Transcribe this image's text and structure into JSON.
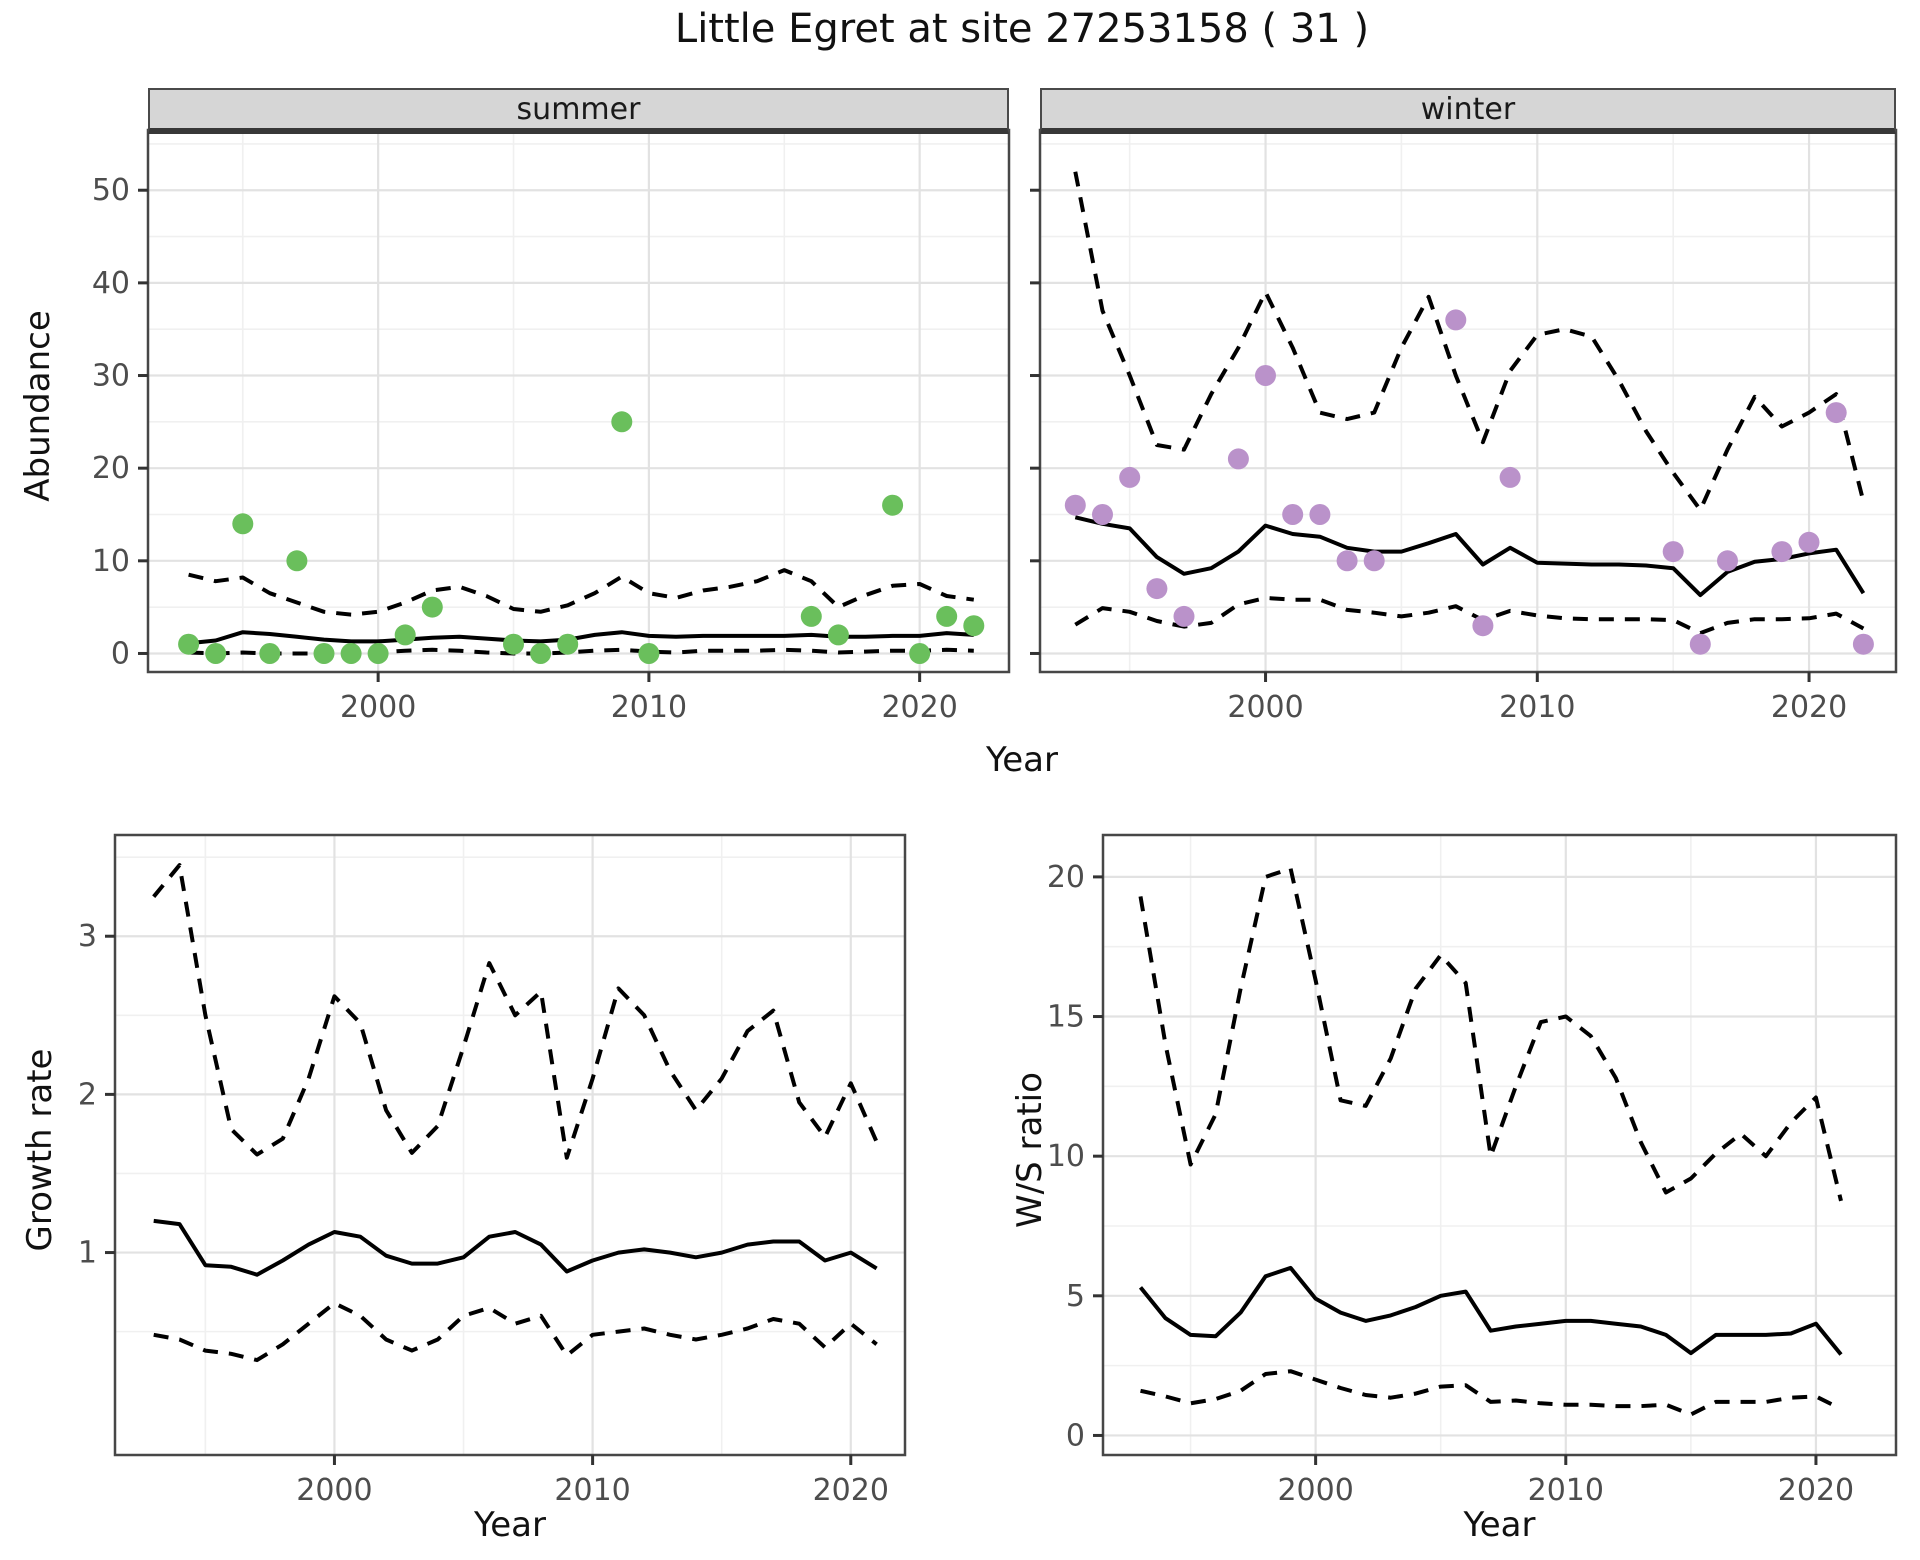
{
  "title": "Little Egret at site 27253158 ( 31 )",
  "colors": {
    "summer_points": "#6abf5c",
    "winter_points": "#ba92ca",
    "line": "#000000",
    "strip_bg": "#d6d6d6",
    "grid_major": "#e2e2e2",
    "grid_minor": "#f0f0f0",
    "panel_border": "#474747",
    "tick_text": "#4d4d4d"
  },
  "chart_data": [
    {
      "id": "abundance-summer",
      "type": "scatter",
      "facet": "summer",
      "point_color": "#6abf5c",
      "x": {
        "label": "Year",
        "range": [
          1991.5,
          2023.3
        ],
        "ticks": [
          2000,
          2010,
          2020
        ],
        "minor_ticks": [
          1995,
          2005,
          2015
        ]
      },
      "y": {
        "label": "Abundance",
        "range": [
          -2,
          56.5
        ],
        "ticks": [
          0,
          10,
          20,
          30,
          40,
          50
        ],
        "minor_ticks": [
          5,
          15,
          25,
          35,
          45,
          55
        ]
      },
      "points": {
        "years": [
          1993,
          1994,
          1995,
          1996,
          1997,
          1998,
          1999,
          2000,
          2001,
          2002,
          2005,
          2006,
          2007,
          2009,
          2010,
          2016,
          2017,
          2019,
          2020,
          2021,
          2022
        ],
        "values": [
          1,
          0,
          14,
          0,
          10,
          0,
          0,
          0,
          2,
          5,
          1,
          0,
          1,
          25,
          0,
          4,
          2,
          16,
          0,
          4,
          3
        ]
      },
      "series": [
        {
          "name": "mean",
          "style": "solid",
          "years": [
            1993,
            1994,
            1995,
            1996,
            1997,
            1998,
            1999,
            2000,
            2001,
            2002,
            2003,
            2004,
            2005,
            2006,
            2007,
            2008,
            2009,
            2010,
            2011,
            2012,
            2013,
            2014,
            2015,
            2016,
            2017,
            2018,
            2019,
            2020,
            2021,
            2022
          ],
          "values": [
            1.1,
            1.4,
            2.3,
            2.1,
            1.8,
            1.5,
            1.3,
            1.3,
            1.5,
            1.7,
            1.8,
            1.6,
            1.4,
            1.3,
            1.5,
            2.0,
            2.3,
            1.9,
            1.8,
            1.9,
            1.9,
            1.9,
            1.9,
            2.0,
            1.8,
            1.8,
            1.9,
            1.9,
            2.2,
            2.0
          ]
        },
        {
          "name": "upper_ci",
          "style": "dashed",
          "years": [
            1993,
            1994,
            1995,
            1996,
            1997,
            1998,
            1999,
            2000,
            2001,
            2002,
            2003,
            2004,
            2005,
            2006,
            2007,
            2008,
            2009,
            2010,
            2011,
            2012,
            2013,
            2014,
            2015,
            2016,
            2017,
            2018,
            2019,
            2020,
            2021,
            2022
          ],
          "values": [
            8.5,
            7.8,
            8.2,
            6.5,
            5.5,
            4.5,
            4.2,
            4.5,
            5.5,
            6.8,
            7.2,
            6.2,
            4.8,
            4.5,
            5.2,
            6.5,
            8.3,
            6.5,
            6.0,
            6.8,
            7.2,
            7.8,
            9.0,
            7.8,
            5.0,
            6.3,
            7.3,
            7.5,
            6.2,
            5.8
          ]
        },
        {
          "name": "lower_ci",
          "style": "dashed",
          "years": [
            1993,
            1994,
            1995,
            1996,
            1997,
            1998,
            1999,
            2000,
            2001,
            2002,
            2003,
            2004,
            2005,
            2006,
            2007,
            2008,
            2009,
            2010,
            2011,
            2012,
            2013,
            2014,
            2015,
            2016,
            2017,
            2018,
            2019,
            2020,
            2021,
            2022
          ],
          "values": [
            0.1,
            0,
            0.1,
            0,
            0,
            0,
            0,
            0.1,
            0.3,
            0.4,
            0.3,
            0.1,
            0,
            0,
            0.1,
            0.3,
            0.4,
            0.2,
            0.1,
            0.3,
            0.3,
            0.3,
            0.4,
            0.3,
            0.1,
            0.2,
            0.3,
            0.3,
            0.4,
            0.3
          ]
        }
      ]
    },
    {
      "id": "abundance-winter",
      "type": "scatter",
      "facet": "winter",
      "point_color": "#ba92ca",
      "x": {
        "label": "Year",
        "range": [
          1991.7,
          2023.2
        ],
        "ticks": [
          2000,
          2010,
          2020
        ],
        "minor_ticks": [
          1995,
          2005,
          2015
        ]
      },
      "y": {
        "label": "Abundance",
        "range": [
          -2,
          56.5
        ],
        "ticks": [
          0,
          10,
          20,
          30,
          40,
          50
        ],
        "minor_ticks": [
          5,
          15,
          25,
          35,
          45,
          55
        ]
      },
      "points": {
        "years": [
          1993,
          1994,
          1995,
          1996,
          1997,
          1999,
          2000,
          2001,
          2002,
          2003,
          2004,
          2007,
          2008,
          2009,
          2015,
          2016,
          2017,
          2019,
          2020,
          2021,
          2022
        ],
        "values": [
          16,
          15,
          19,
          7,
          4,
          21,
          30,
          15,
          15,
          10,
          10,
          36,
          3,
          19,
          11,
          1,
          10,
          11,
          12,
          26,
          1
        ]
      },
      "series": [
        {
          "name": "mean",
          "style": "solid",
          "years": [
            1993,
            1994,
            1995,
            1996,
            1997,
            1998,
            1999,
            2000,
            2001,
            2002,
            2003,
            2004,
            2005,
            2006,
            2007,
            2008,
            2009,
            2010,
            2011,
            2012,
            2013,
            2014,
            2015,
            2016,
            2017,
            2018,
            2019,
            2020,
            2021,
            2022
          ],
          "values": [
            14.7,
            14.0,
            13.5,
            10.4,
            8.6,
            9.2,
            11.0,
            13.8,
            12.9,
            12.6,
            11.4,
            11.0,
            11.0,
            11.9,
            12.9,
            9.6,
            11.4,
            9.8,
            9.7,
            9.6,
            9.6,
            9.5,
            9.2,
            6.3,
            8.8,
            9.9,
            10.2,
            10.8,
            11.2,
            6.5
          ]
        },
        {
          "name": "upper_ci",
          "style": "dashed",
          "years": [
            1993,
            1994,
            1995,
            1996,
            1997,
            1998,
            1999,
            2000,
            2001,
            2002,
            2003,
            2004,
            2005,
            2006,
            2007,
            2008,
            2009,
            2010,
            2011,
            2012,
            2013,
            2014,
            2015,
            2016,
            2017,
            2018,
            2019,
            2020,
            2021,
            2022
          ],
          "values": [
            52,
            37,
            30,
            22.5,
            22,
            28,
            33,
            39,
            33,
            26,
            25.3,
            26,
            33,
            38.5,
            30,
            22.8,
            30.5,
            34.4,
            35,
            34.2,
            29.5,
            24,
            19.5,
            15.5,
            22,
            27.7,
            24.5,
            26,
            28,
            16.4
          ]
        },
        {
          "name": "lower_ci",
          "style": "dashed",
          "years": [
            1993,
            1994,
            1995,
            1996,
            1997,
            1998,
            1999,
            2000,
            2001,
            2002,
            2003,
            2004,
            2005,
            2006,
            2007,
            2008,
            2009,
            2010,
            2011,
            2012,
            2013,
            2014,
            2015,
            2016,
            2017,
            2018,
            2019,
            2020,
            2021,
            2022
          ],
          "values": [
            3.1,
            4.9,
            4.5,
            3.5,
            2.9,
            3.3,
            5.3,
            6.0,
            5.8,
            5.8,
            4.7,
            4.4,
            4.0,
            4.4,
            5.1,
            3.6,
            4.6,
            4.1,
            3.8,
            3.7,
            3.7,
            3.7,
            3.6,
            2.2,
            3.3,
            3.7,
            3.7,
            3.8,
            4.3,
            2.7
          ]
        }
      ]
    },
    {
      "id": "growth-rate",
      "type": "line",
      "facet": null,
      "x": {
        "label": "Year",
        "range": [
          1991.5,
          2022.1
        ],
        "ticks": [
          2000,
          2010,
          2020
        ],
        "minor_ticks": [
          1995,
          2005,
          2015
        ]
      },
      "y": {
        "label": "Growth rate",
        "range": [
          -0.28,
          3.64
        ],
        "ticks": [
          1,
          2,
          3
        ],
        "minor_ticks": [
          0.5,
          1.5,
          2.5,
          3.5
        ]
      },
      "points": null,
      "series": [
        {
          "name": "mean",
          "style": "solid",
          "years": [
            1993,
            1994,
            1995,
            1996,
            1997,
            1998,
            1999,
            2000,
            2001,
            2002,
            2003,
            2004,
            2005,
            2006,
            2007,
            2008,
            2009,
            2010,
            2011,
            2012,
            2013,
            2014,
            2015,
            2016,
            2017,
            2018,
            2019,
            2020,
            2021
          ],
          "values": [
            1.2,
            1.18,
            0.92,
            0.91,
            0.86,
            0.95,
            1.05,
            1.13,
            1.1,
            0.98,
            0.93,
            0.93,
            0.97,
            1.1,
            1.13,
            1.05,
            0.88,
            0.95,
            1.0,
            1.02,
            1.0,
            0.97,
            1.0,
            1.05,
            1.07,
            1.07,
            0.95,
            1.0,
            0.9
          ]
        },
        {
          "name": "upper_ci",
          "style": "dashed",
          "years": [
            1993,
            1994,
            1995,
            1996,
            1997,
            1998,
            1999,
            2000,
            2001,
            2002,
            2003,
            2004,
            2005,
            2006,
            2007,
            2008,
            2009,
            2010,
            2011,
            2012,
            2013,
            2014,
            2015,
            2016,
            2017,
            2018,
            2019,
            2020,
            2021
          ],
          "values": [
            3.25,
            3.45,
            2.5,
            1.78,
            1.62,
            1.72,
            2.1,
            2.62,
            2.45,
            1.9,
            1.63,
            1.8,
            2.3,
            2.83,
            2.5,
            2.65,
            1.6,
            2.1,
            2.67,
            2.5,
            2.15,
            1.9,
            2.1,
            2.4,
            2.53,
            1.95,
            1.73,
            2.07,
            1.7
          ]
        },
        {
          "name": "lower_ci",
          "style": "dashed",
          "years": [
            1993,
            1994,
            1995,
            1996,
            1997,
            1998,
            1999,
            2000,
            2001,
            2002,
            2003,
            2004,
            2005,
            2006,
            2007,
            2008,
            2009,
            2010,
            2011,
            2012,
            2013,
            2014,
            2015,
            2016,
            2017,
            2018,
            2019,
            2020,
            2021
          ],
          "values": [
            0.48,
            0.45,
            0.38,
            0.36,
            0.32,
            0.42,
            0.55,
            0.68,
            0.6,
            0.45,
            0.38,
            0.45,
            0.6,
            0.65,
            0.55,
            0.6,
            0.35,
            0.48,
            0.5,
            0.52,
            0.48,
            0.45,
            0.48,
            0.52,
            0.58,
            0.55,
            0.4,
            0.55,
            0.42
          ]
        }
      ]
    },
    {
      "id": "ws-ratio",
      "type": "line",
      "facet": null,
      "x": {
        "label": "Year",
        "range": [
          1991.5,
          2023.2
        ],
        "ticks": [
          2000,
          2010,
          2020
        ],
        "minor_ticks": [
          1995,
          2005,
          2015
        ]
      },
      "y": {
        "label": "W/S ratio",
        "range": [
          -0.7,
          21.5
        ],
        "ticks": [
          0,
          5,
          10,
          15,
          20
        ],
        "minor_ticks": [
          2.5,
          7.5,
          12.5,
          17.5
        ]
      },
      "points": null,
      "series": [
        {
          "name": "mean",
          "style": "solid",
          "years": [
            1993,
            1994,
            1995,
            1996,
            1997,
            1998,
            1999,
            2000,
            2001,
            2002,
            2003,
            2004,
            2005,
            2006,
            2007,
            2008,
            2009,
            2010,
            2011,
            2012,
            2013,
            2014,
            2015,
            2016,
            2017,
            2018,
            2019,
            2020,
            2021
          ],
          "values": [
            5.3,
            4.2,
            3.6,
            3.55,
            4.4,
            5.7,
            6.0,
            4.9,
            4.4,
            4.1,
            4.3,
            4.6,
            5.0,
            5.15,
            3.75,
            3.9,
            4.0,
            4.1,
            4.1,
            4.0,
            3.9,
            3.6,
            2.95,
            3.6,
            3.6,
            3.6,
            3.65,
            4.0,
            2.9
          ]
        },
        {
          "name": "upper_ci",
          "style": "dashed",
          "years": [
            1993,
            1994,
            1995,
            1996,
            1997,
            1998,
            1999,
            2000,
            2001,
            2002,
            2003,
            2004,
            2005,
            2006,
            2007,
            2008,
            2009,
            2010,
            2011,
            2012,
            2013,
            2014,
            2015,
            2016,
            2017,
            2018,
            2019,
            2020,
            2021
          ],
          "values": [
            19.3,
            14,
            9.7,
            11.5,
            16,
            20,
            20.3,
            16.3,
            12,
            11.8,
            13.5,
            16,
            17.2,
            16.2,
            10,
            12.5,
            14.8,
            15,
            14.3,
            12.8,
            10.5,
            8.7,
            9.2,
            10.1,
            10.8,
            10,
            11.2,
            12.1,
            8.4
          ]
        },
        {
          "name": "lower_ci",
          "style": "dashed",
          "years": [
            1993,
            1994,
            1995,
            1996,
            1997,
            1998,
            1999,
            2000,
            2001,
            2002,
            2003,
            2004,
            2005,
            2006,
            2007,
            2008,
            2009,
            2010,
            2011,
            2012,
            2013,
            2014,
            2015,
            2016,
            2017,
            2018,
            2019,
            2020,
            2021
          ],
          "values": [
            1.6,
            1.4,
            1.15,
            1.3,
            1.6,
            2.2,
            2.3,
            2.0,
            1.7,
            1.45,
            1.35,
            1.5,
            1.75,
            1.8,
            1.2,
            1.25,
            1.15,
            1.1,
            1.1,
            1.05,
            1.05,
            1.1,
            0.75,
            1.2,
            1.2,
            1.2,
            1.35,
            1.4,
            0.95
          ]
        }
      ]
    }
  ]
}
